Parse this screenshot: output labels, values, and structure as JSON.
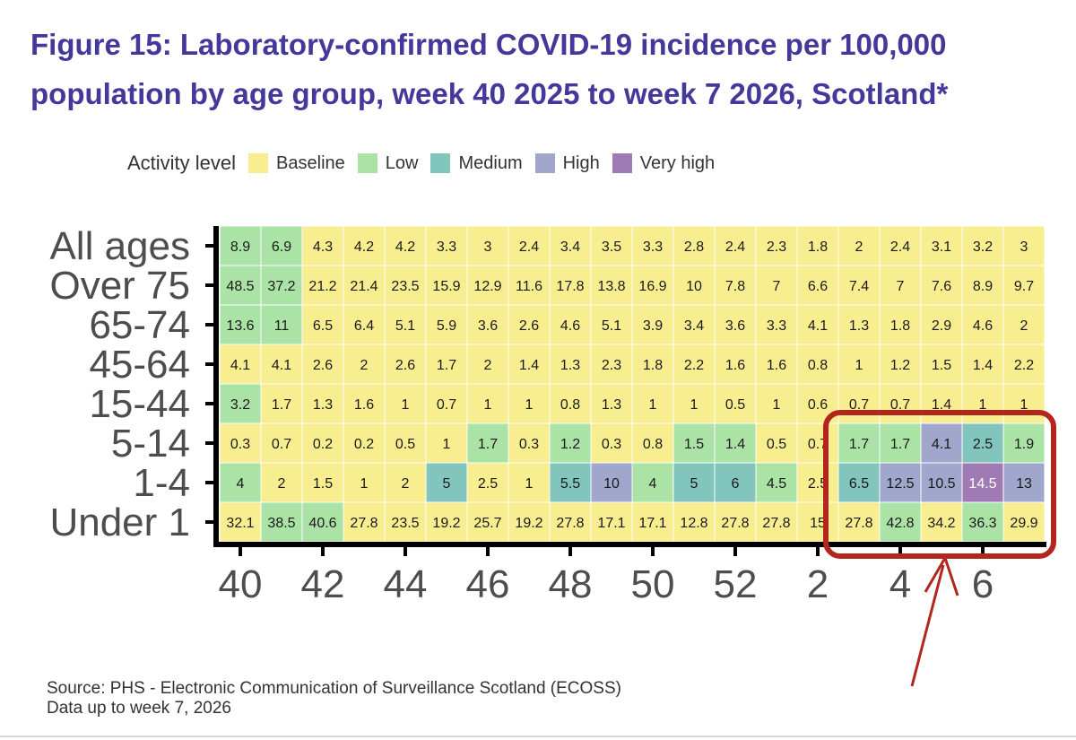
{
  "figure": {
    "title_line1": "Figure 15: Laboratory-confirmed COVID-19 incidence per 100,000",
    "title_line2": "population by age group, week 40 2025 to week 7 2026, Scotland*"
  },
  "legend": {
    "title": "Activity level",
    "items": [
      {
        "label": "Baseline",
        "color": "#f9ee8f"
      },
      {
        "label": "Low",
        "color": "#abe2a6"
      },
      {
        "label": "Medium",
        "color": "#82c5bc"
      },
      {
        "label": "High",
        "color": "#a1a6cd"
      },
      {
        "label": "Very high",
        "color": "#a07bb3"
      }
    ]
  },
  "chart_data": {
    "type": "heatmap",
    "title": "Laboratory-confirmed COVID-19 incidence per 100,000 population by age group, week 40 2025 to week 7 2026, Scotland*",
    "xlabel": "",
    "ylabel": "",
    "weeks": [
      40,
      41,
      42,
      43,
      44,
      45,
      46,
      47,
      48,
      49,
      50,
      51,
      52,
      1,
      2,
      3,
      4,
      5,
      6,
      7
    ],
    "x_tick_labels": [
      "40",
      "42",
      "44",
      "46",
      "48",
      "50",
      "52",
      "2",
      "4",
      "6"
    ],
    "x_tick_weeks": [
      40,
      42,
      44,
      46,
      48,
      50,
      52,
      2,
      4,
      6
    ],
    "rows": [
      {
        "label": "All ages",
        "values": [
          8.9,
          6.9,
          4.3,
          4.2,
          4.2,
          3.3,
          3,
          2.4,
          3.4,
          3.5,
          3.3,
          2.8,
          2.4,
          2.3,
          1.8,
          2,
          2.4,
          3.1,
          3.2,
          3
        ],
        "levels": [
          "Low",
          "Low",
          "Baseline",
          "Baseline",
          "Baseline",
          "Baseline",
          "Baseline",
          "Baseline",
          "Baseline",
          "Baseline",
          "Baseline",
          "Baseline",
          "Baseline",
          "Baseline",
          "Baseline",
          "Baseline",
          "Baseline",
          "Baseline",
          "Baseline",
          "Baseline"
        ]
      },
      {
        "label": "Over 75",
        "values": [
          48.5,
          37.2,
          21.2,
          21.4,
          23.5,
          15.9,
          12.9,
          11.6,
          17.8,
          13.8,
          16.9,
          10,
          7.8,
          7,
          6.6,
          7.4,
          7,
          7.6,
          8.9,
          9.7
        ],
        "levels": [
          "Low",
          "Low",
          "Baseline",
          "Baseline",
          "Baseline",
          "Baseline",
          "Baseline",
          "Baseline",
          "Baseline",
          "Baseline",
          "Baseline",
          "Baseline",
          "Baseline",
          "Baseline",
          "Baseline",
          "Baseline",
          "Baseline",
          "Baseline",
          "Baseline",
          "Baseline"
        ]
      },
      {
        "label": "65-74",
        "values": [
          13.6,
          11,
          6.5,
          6.4,
          5.1,
          5.9,
          3.6,
          2.6,
          4.6,
          5.1,
          3.9,
          3.4,
          3.6,
          3.3,
          4.1,
          1.3,
          1.8,
          2.9,
          4.6,
          2
        ],
        "levels": [
          "Low",
          "Low",
          "Baseline",
          "Baseline",
          "Baseline",
          "Baseline",
          "Baseline",
          "Baseline",
          "Baseline",
          "Baseline",
          "Baseline",
          "Baseline",
          "Baseline",
          "Baseline",
          "Baseline",
          "Baseline",
          "Baseline",
          "Baseline",
          "Baseline",
          "Baseline"
        ]
      },
      {
        "label": "45-64",
        "values": [
          4.1,
          4.1,
          2.6,
          2,
          2.6,
          1.7,
          2,
          1.4,
          1.3,
          2.3,
          1.8,
          2.2,
          1.6,
          1.6,
          0.8,
          1,
          1.2,
          1.5,
          1.4,
          2.2
        ],
        "levels": [
          "Baseline",
          "Baseline",
          "Baseline",
          "Baseline",
          "Baseline",
          "Baseline",
          "Baseline",
          "Baseline",
          "Baseline",
          "Baseline",
          "Baseline",
          "Baseline",
          "Baseline",
          "Baseline",
          "Baseline",
          "Baseline",
          "Baseline",
          "Baseline",
          "Baseline",
          "Baseline"
        ]
      },
      {
        "label": "15-44",
        "values": [
          3.2,
          1.7,
          1.3,
          1.6,
          1,
          0.7,
          1,
          1,
          0.8,
          1.3,
          1,
          1,
          0.5,
          1,
          0.6,
          0.7,
          0.7,
          1.4,
          1,
          1
        ],
        "levels": [
          "Low",
          "Baseline",
          "Baseline",
          "Baseline",
          "Baseline",
          "Baseline",
          "Baseline",
          "Baseline",
          "Baseline",
          "Baseline",
          "Baseline",
          "Baseline",
          "Baseline",
          "Baseline",
          "Baseline",
          "Baseline",
          "Baseline",
          "Baseline",
          "Baseline",
          "Baseline"
        ]
      },
      {
        "label": "5-14",
        "values": [
          0.3,
          0.7,
          0.2,
          0.2,
          0.5,
          1,
          1.7,
          0.3,
          1.2,
          0.3,
          0.8,
          1.5,
          1.4,
          0.5,
          0.7,
          1.7,
          1.7,
          4.1,
          2.5,
          1.9
        ],
        "levels": [
          "Baseline",
          "Baseline",
          "Baseline",
          "Baseline",
          "Baseline",
          "Baseline",
          "Low",
          "Baseline",
          "Low",
          "Baseline",
          "Baseline",
          "Low",
          "Low",
          "Baseline",
          "Baseline",
          "Low",
          "Low",
          "High",
          "Medium",
          "Low"
        ]
      },
      {
        "label": "1-4",
        "values": [
          4,
          2,
          1.5,
          1,
          2,
          5,
          2.5,
          1,
          5.5,
          10,
          4,
          5,
          6,
          4.5,
          2.5,
          6.5,
          12.5,
          10.5,
          14.5,
          13
        ],
        "levels": [
          "Low",
          "Baseline",
          "Baseline",
          "Baseline",
          "Baseline",
          "Medium",
          "Baseline",
          "Baseline",
          "Medium",
          "High",
          "Low",
          "Medium",
          "Medium",
          "Low",
          "Baseline",
          "Medium",
          "High",
          "High",
          "Very high",
          "High"
        ]
      },
      {
        "label": "Under 1",
        "values": [
          32.1,
          38.5,
          40.6,
          27.8,
          23.5,
          19.2,
          25.7,
          19.2,
          27.8,
          17.1,
          17.1,
          12.8,
          27.8,
          27.8,
          15,
          27.8,
          42.8,
          34.2,
          36.3,
          29.9
        ],
        "levels": [
          "Baseline",
          "Low",
          "Low",
          "Baseline",
          "Baseline",
          "Baseline",
          "Baseline",
          "Baseline",
          "Baseline",
          "Baseline",
          "Baseline",
          "Baseline",
          "Baseline",
          "Baseline",
          "Baseline",
          "Baseline",
          "Low",
          "Baseline",
          "Low",
          "Baseline"
        ]
      }
    ],
    "highlight": {
      "from_week_index": 15,
      "to_week_index": 19,
      "from_row_index": 5,
      "to_row_index": 7,
      "color": "#b3261e"
    }
  },
  "source": {
    "line1": "Source: PHS - Electronic Communication of Surveillance Scotland (ECOSS)",
    "line2": "Data up to week 7, 2026"
  }
}
